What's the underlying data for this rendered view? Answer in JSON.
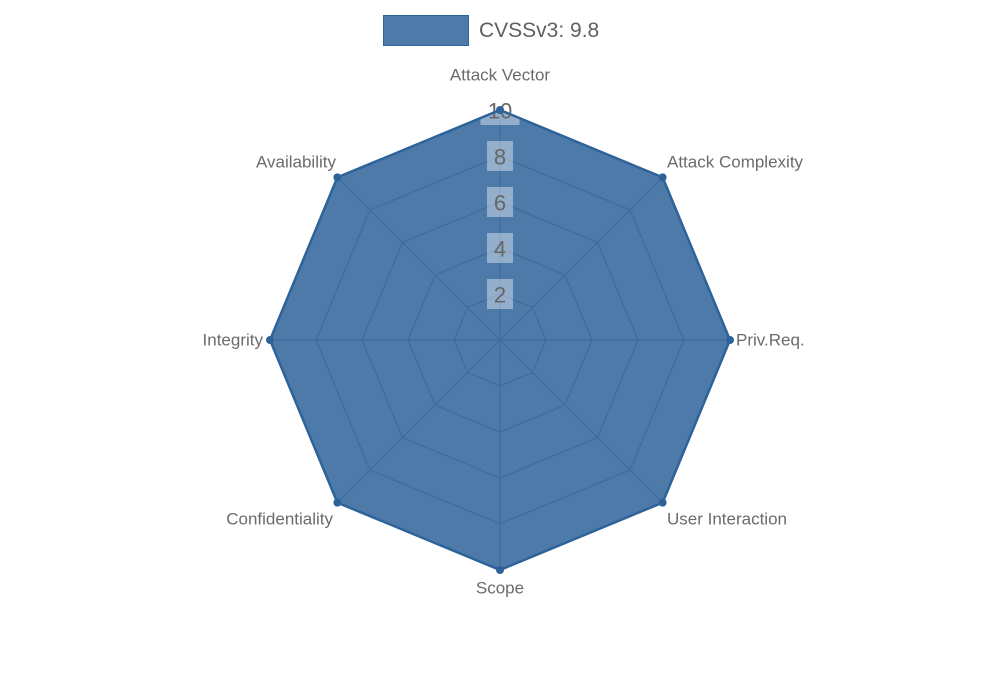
{
  "legend": {
    "label": "CVSSv3: 9.8",
    "swatch_color": "rgba(46,99,154,0.85)",
    "swatch_border": "#2e639a"
  },
  "chart_data": {
    "type": "radar",
    "title": "CVSSv3: 9.8",
    "categories": [
      "Attack Vector",
      "Attack Complexity",
      "Priv.Req.",
      "User Interaction",
      "Scope",
      "Confidentiality",
      "Integrity",
      "Availability"
    ],
    "series": [
      {
        "name": "CVSSv3: 9.8",
        "values": [
          10,
          10,
          10,
          10,
          10,
          10,
          10,
          10
        ]
      }
    ],
    "ticks": [
      2,
      4,
      6,
      8,
      10
    ],
    "rmin": 0,
    "rmax": 10,
    "grid": true,
    "grid_shape": "polygon",
    "legend_position": "top",
    "colors": {
      "fill": "rgba(46,99,154,0.85)",
      "border": "#2e639a",
      "marker": "#2e639a",
      "grid_line": "#999999",
      "axis_label_text": "#6b6b6b",
      "tick_text": "#666666",
      "tick_backdrop": "rgba(255,255,255,0.4)",
      "background": "#ffffff"
    }
  }
}
